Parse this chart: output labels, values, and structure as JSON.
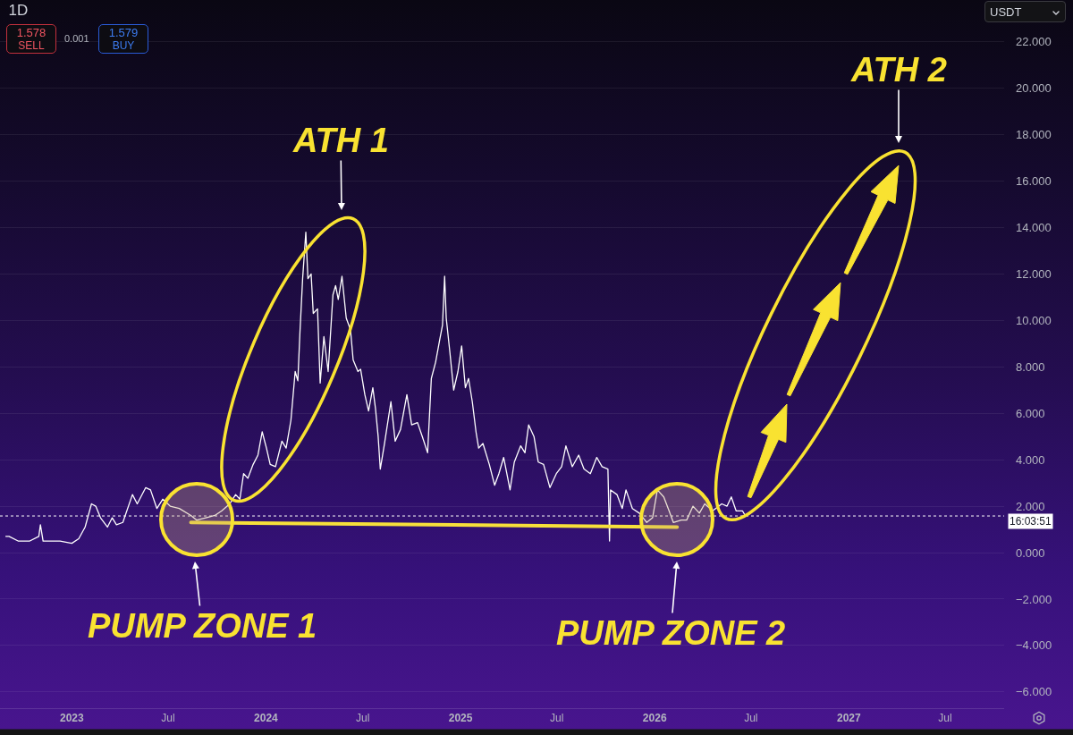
{
  "chart_data": {
    "type": "line",
    "title": "1D",
    "x": [
      "2022-08-30",
      "2022-09-05",
      "2022-09-22",
      "2022-10-14",
      "2022-10-31",
      "2022-11-03",
      "2022-11-08",
      "2022-12-10",
      "2023-01-01",
      "2023-01-14",
      "2023-01-26",
      "2023-02-07",
      "2023-02-15",
      "2023-02-24",
      "2023-03-09",
      "2023-03-18",
      "2023-03-26",
      "2023-04-07",
      "2023-04-25",
      "2023-05-04",
      "2023-05-20",
      "2023-05-29",
      "2023-06-10",
      "2023-06-21",
      "2023-07-05",
      "2023-07-22",
      "2023-08-13",
      "2023-08-24",
      "2023-09-10",
      "2023-09-27",
      "2023-10-10",
      "2023-10-25",
      "2023-11-05",
      "2023-11-13",
      "2023-11-20",
      "2023-11-28",
      "2023-12-08",
      "2023-12-17",
      "2023-12-25",
      "2024-01-02",
      "2024-01-09",
      "2024-01-19",
      "2024-01-31",
      "2024-02-08",
      "2024-02-17",
      "2024-02-25",
      "2024-03-01",
      "2024-03-05",
      "2024-03-10",
      "2024-03-16",
      "2024-03-20",
      "2024-03-26",
      "2024-03-30",
      "2024-04-07",
      "2024-04-12",
      "2024-04-19",
      "2024-04-27",
      "2024-05-06",
      "2024-05-11",
      "2024-05-16",
      "2024-05-23",
      "2024-05-31",
      "2024-06-08",
      "2024-06-13",
      "2024-06-22",
      "2024-06-27",
      "2024-07-05",
      "2024-07-12",
      "2024-07-20",
      "2024-07-25",
      "2024-07-30",
      "2024-08-03",
      "2024-08-11",
      "2024-08-23",
      "2024-08-31",
      "2024-09-10",
      "2024-09-22",
      "2024-10-01",
      "2024-10-12",
      "2024-10-21",
      "2024-10-31",
      "2024-11-07",
      "2024-11-15",
      "2024-11-23",
      "2024-11-28",
      "2024-12-02",
      "2024-12-05",
      "2024-12-12",
      "2024-12-19",
      "2024-12-27",
      "2025-01-03",
      "2025-01-10",
      "2025-01-16",
      "2025-01-23",
      "2025-01-30",
      "2025-02-04",
      "2025-02-12",
      "2025-02-24",
      "2025-03-06",
      "2025-03-14",
      "2025-03-23",
      "2025-04-04",
      "2025-04-12",
      "2025-04-24",
      "2025-05-02",
      "2025-05-09",
      "2025-05-19",
      "2025-05-27",
      "2025-06-06",
      "2025-06-18",
      "2025-06-30",
      "2025-07-10",
      "2025-07-18",
      "2025-07-30",
      "2025-08-11",
      "2025-08-21",
      "2025-09-02",
      "2025-09-14",
      "2025-09-24",
      "2025-10-05",
      "2025-10-08",
      "2025-10-10",
      "2025-10-22",
      "2025-11-01",
      "2025-11-08",
      "2025-11-20",
      "2025-12-03",
      "2025-12-17",
      "2025-12-28",
      "2026-01-06",
      "2026-01-18",
      "2026-01-28",
      "2026-02-05",
      "2026-02-20",
      "2026-03-02",
      "2026-03-14",
      "2026-03-26",
      "2026-04-05",
      "2026-04-20",
      "2026-05-07",
      "2026-05-17",
      "2026-05-25",
      "2026-06-03",
      "2026-06-15",
      "2026-06-20"
    ],
    "series": [
      {
        "color": "#ffffff",
        "values": [
          0.7,
          0.7,
          0.5,
          0.5,
          0.7,
          1.2,
          0.5,
          0.5,
          0.4,
          0.6,
          1.1,
          2.1,
          2.0,
          1.5,
          1.1,
          1.5,
          1.2,
          1.3,
          2.5,
          2.1,
          2.8,
          2.7,
          1.9,
          2.3,
          2.0,
          1.9,
          1.6,
          1.4,
          1.5,
          1.6,
          1.8,
          2.1,
          2.5,
          2.3,
          3.4,
          3.2,
          3.8,
          4.2,
          5.2,
          4.5,
          3.8,
          3.7,
          4.8,
          4.5,
          5.7,
          7.8,
          7.4,
          9.5,
          11.8,
          13.8,
          11.8,
          12.0,
          10.3,
          10.5,
          7.3,
          9.3,
          7.8,
          11.1,
          11.5,
          10.9,
          11.9,
          10.1,
          9.6,
          8.3,
          7.8,
          7.9,
          6.8,
          6.1,
          7.1,
          6.2,
          5.0,
          3.6,
          4.7,
          6.5,
          4.8,
          5.3,
          6.8,
          5.5,
          5.6,
          5.0,
          4.3,
          7.5,
          8.2,
          9.2,
          9.8,
          11.9,
          10.1,
          8.6,
          7.0,
          7.8,
          8.9,
          7.1,
          7.5,
          6.5,
          5.2,
          4.5,
          4.7,
          3.8,
          2.9,
          3.4,
          4.1,
          2.7,
          3.9,
          4.6,
          4.3,
          5.5,
          5.0,
          3.9,
          3.8,
          2.8,
          3.4,
          3.7,
          4.6,
          3.7,
          4.2,
          3.6,
          3.4,
          4.1,
          3.7,
          3.6,
          0.5,
          2.7,
          2.5,
          1.9,
          2.7,
          1.9,
          1.7,
          1.3,
          1.5,
          2.7,
          2.4,
          1.8,
          1.3,
          1.4,
          1.4,
          2.0,
          1.7,
          2.1,
          1.8,
          2.1,
          2.0,
          2.4,
          1.8,
          1.8,
          1.6
        ]
      },
      {
        "type": "line",
        "x": [
          "2023-08-13",
          "2026-02-12"
        ],
        "values": [
          1.3,
          1.1
        ],
        "color": "#f7e03a"
      }
    ],
    "xlim": [
      "2022-08-19",
      "2027-10-20"
    ],
    "xticks": [
      {
        "value": "2023-01-01",
        "label": "2023"
      },
      {
        "value": "2023-07-01",
        "label": "Jul"
      },
      {
        "value": "2024-01-01",
        "label": "2024"
      },
      {
        "value": "2024-07-01",
        "label": "Jul"
      },
      {
        "value": "2025-01-01",
        "label": "2025"
      },
      {
        "value": "2025-07-01",
        "label": "Jul"
      },
      {
        "value": "2026-01-01",
        "label": "2026"
      },
      {
        "value": "2026-07-01",
        "label": "Jul"
      },
      {
        "value": "2027-01-01",
        "label": "2027"
      },
      {
        "value": "2027-07-01",
        "label": "Jul"
      }
    ],
    "ylim": [
      -6.7,
      23.8
    ],
    "yticks": [
      {
        "value": -6,
        "label": "−6.000"
      },
      {
        "value": -4,
        "label": "−4.000"
      },
      {
        "value": -2,
        "label": "−2.000"
      },
      {
        "value": 0,
        "label": "0.000"
      },
      {
        "value": 2,
        "label": "2.000"
      },
      {
        "value": 4,
        "label": "4.000"
      },
      {
        "value": 6,
        "label": "6.000"
      },
      {
        "value": 8,
        "label": "8.000"
      },
      {
        "value": 10,
        "label": "10.000"
      },
      {
        "value": 12,
        "label": "12.000"
      },
      {
        "value": 14,
        "label": "14.000"
      },
      {
        "value": 16,
        "label": "16.000"
      },
      {
        "value": 18,
        "label": "18.000"
      },
      {
        "value": 20,
        "label": "20.000"
      },
      {
        "value": 22,
        "label": "22.000"
      }
    ],
    "grid": "y",
    "ref_lines": [
      {
        "axis": "y",
        "value": 1.578,
        "color": "#ffffff",
        "line_style": "dotted"
      }
    ],
    "annotations": [
      "ATH 1",
      "ATH 2",
      "PUMP ZONE 1",
      "PUMP ZONE 2",
      "1.578",
      "SELL",
      "0.001",
      "1.579",
      "BUY",
      "USDT",
      "16:03:51"
    ]
  }
}
